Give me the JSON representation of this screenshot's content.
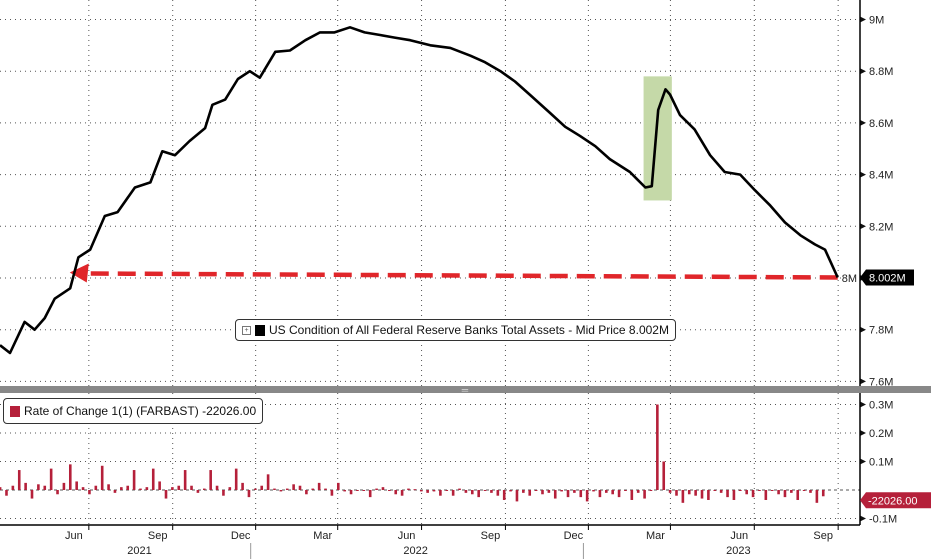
{
  "colors": {
    "line": "#000000",
    "bars": "#b5203a",
    "arrow": "#e0262a",
    "highlight": "#c5d9a8",
    "last_value_box": "#000000",
    "roc_value_box": "#b5203a"
  },
  "chart_data": [
    {
      "type": "line",
      "legend": {
        "icon": "expand-icon",
        "label": "US Condition of All Federal Reserve Banks Total Assets - Mid Price 8.002M"
      },
      "last_value_label": "8.002M",
      "y_ticks": [
        "9M",
        "8.8M",
        "8.6M",
        "8.4M",
        "8.2M",
        "8M",
        "7.8M",
        "7.6M"
      ],
      "y_tick_values": [
        9.0,
        8.8,
        8.6,
        8.4,
        8.2,
        8.0,
        7.8,
        7.6
      ],
      "ylim": [
        7.55,
        9.05
      ],
      "units": "M",
      "grid": true,
      "annotations": [
        {
          "type": "highlight",
          "from": "2023-03-08",
          "to": "2023-04-08",
          "range": [
            8.3,
            8.78
          ]
        },
        {
          "type": "dashed-arrow",
          "from": "2023-10-07",
          "to": "2021-06-22",
          "value": 8.002
        }
      ],
      "points": [
        [
          "2021-04-01",
          7.74
        ],
        [
          "2021-04-12",
          7.71
        ],
        [
          "2021-04-28",
          7.83
        ],
        [
          "2021-05-09",
          7.8
        ],
        [
          "2021-05-20",
          7.845
        ],
        [
          "2021-05-31",
          7.92
        ],
        [
          "2021-06-17",
          7.96
        ],
        [
          "2021-06-26",
          8.08
        ],
        [
          "2021-07-09",
          8.11
        ],
        [
          "2021-07-25",
          8.24
        ],
        [
          "2021-08-08",
          8.255
        ],
        [
          "2021-08-27",
          8.35
        ],
        [
          "2021-09-13",
          8.37
        ],
        [
          "2021-09-26",
          8.49
        ],
        [
          "2021-10-10",
          8.475
        ],
        [
          "2021-10-26",
          8.53
        ],
        [
          "2021-11-12",
          8.58
        ],
        [
          "2021-11-20",
          8.67
        ],
        [
          "2021-12-04",
          8.69
        ],
        [
          "2021-12-18",
          8.77
        ],
        [
          "2021-12-31",
          8.8
        ],
        [
          "2022-01-11",
          8.775
        ],
        [
          "2022-01-28",
          8.875
        ],
        [
          "2022-02-13",
          8.88
        ],
        [
          "2022-03-02",
          8.92
        ],
        [
          "2022-03-18",
          8.95
        ],
        [
          "2022-04-03",
          8.95
        ],
        [
          "2022-04-20",
          8.97
        ],
        [
          "2022-05-06",
          8.95
        ],
        [
          "2022-05-23",
          8.94
        ],
        [
          "2022-06-08",
          8.93
        ],
        [
          "2022-06-25",
          8.92
        ],
        [
          "2022-07-17",
          8.9
        ],
        [
          "2022-08-08",
          8.89
        ],
        [
          "2022-08-30",
          8.86
        ],
        [
          "2022-09-15",
          8.835
        ],
        [
          "2022-10-02",
          8.8
        ],
        [
          "2022-10-18",
          8.76
        ],
        [
          "2022-11-03",
          8.71
        ],
        [
          "2022-11-25",
          8.64
        ],
        [
          "2022-12-12",
          8.585
        ],
        [
          "2022-12-28",
          8.55
        ],
        [
          "2023-01-14",
          8.51
        ],
        [
          "2023-01-30",
          8.46
        ],
        [
          "2023-02-21",
          8.41
        ],
        [
          "2023-03-10",
          8.35
        ],
        [
          "2023-03-17",
          8.355
        ],
        [
          "2023-03-24",
          8.65
        ],
        [
          "2023-04-01",
          8.73
        ],
        [
          "2023-04-06",
          8.71
        ],
        [
          "2023-04-17",
          8.63
        ],
        [
          "2023-05-03",
          8.575
        ],
        [
          "2023-05-20",
          8.475
        ],
        [
          "2023-06-05",
          8.41
        ],
        [
          "2023-06-22",
          8.4
        ],
        [
          "2023-07-08",
          8.34
        ],
        [
          "2023-07-25",
          8.28
        ],
        [
          "2023-08-10",
          8.215
        ],
        [
          "2023-08-27",
          8.165
        ],
        [
          "2023-09-12",
          8.13
        ],
        [
          "2023-09-23",
          8.11
        ],
        [
          "2023-10-07",
          8.002
        ]
      ]
    },
    {
      "type": "bar",
      "legend": {
        "label": "Rate of Change 1(1) (FARBAST) -22026.00"
      },
      "last_value_label": "-22026.00",
      "y_ticks": [
        "0.3M",
        "0.2M",
        "0.1M",
        "-0.1M"
      ],
      "y_tick_values": [
        300,
        200,
        100,
        -100
      ],
      "units": "thousands",
      "ylim": [
        -120,
        330
      ],
      "grid": true,
      "start": "2021-04-01",
      "frequency": "weekly",
      "values": [
        10,
        -20,
        15,
        70,
        25,
        -30,
        20,
        15,
        75,
        -15,
        25,
        90,
        30,
        10,
        -15,
        15,
        85,
        20,
        -10,
        10,
        15,
        70,
        5,
        10,
        75,
        30,
        -30,
        10,
        15,
        70,
        15,
        -10,
        5,
        70,
        15,
        -20,
        10,
        75,
        25,
        -25,
        5,
        15,
        55,
        5,
        -5,
        5,
        20,
        15,
        -15,
        5,
        25,
        5,
        -20,
        25,
        -5,
        -15,
        0,
        0,
        -25,
        5,
        10,
        0,
        -15,
        -20,
        5,
        3,
        -5,
        -10,
        -5,
        -20,
        0,
        -20,
        5,
        -10,
        -15,
        -25,
        0,
        -10,
        -20,
        -35,
        -5,
        -40,
        -10,
        -20,
        0,
        -15,
        -10,
        -30,
        -5,
        -25,
        -10,
        -25,
        -40,
        -5,
        -25,
        -10,
        -15,
        -25,
        0,
        -35,
        -10,
        -30,
        0,
        300,
        100,
        -10,
        -20,
        -45,
        -15,
        -20,
        -30,
        -35,
        0,
        -10,
        -25,
        -35,
        0,
        -15,
        -25,
        0,
        -35,
        0,
        -15,
        -25,
        -10,
        -35,
        0,
        -10,
        -45,
        -22
      ]
    }
  ],
  "x_axis": {
    "months": [
      {
        "label": "Jun",
        "date": "2021-06-21"
      },
      {
        "label": "Sep",
        "date": "2021-09-21"
      },
      {
        "label": "Dec",
        "date": "2021-12-21"
      },
      {
        "label": "Mar",
        "date": "2022-03-21"
      },
      {
        "label": "Jun",
        "date": "2022-06-21"
      },
      {
        "label": "Sep",
        "date": "2022-09-21"
      },
      {
        "label": "Dec",
        "date": "2022-12-21"
      },
      {
        "label": "Mar",
        "date": "2023-03-21"
      },
      {
        "label": "Jun",
        "date": "2023-06-21"
      },
      {
        "label": "Sep",
        "date": "2023-09-21"
      }
    ],
    "years": [
      {
        "label": "2021",
        "date": "2021-09-01"
      },
      {
        "label": "2022",
        "date": "2022-07-01"
      },
      {
        "label": "2023",
        "date": "2023-06-20"
      }
    ],
    "year_boundaries": [
      "2022-01-01",
      "2023-01-01"
    ]
  }
}
